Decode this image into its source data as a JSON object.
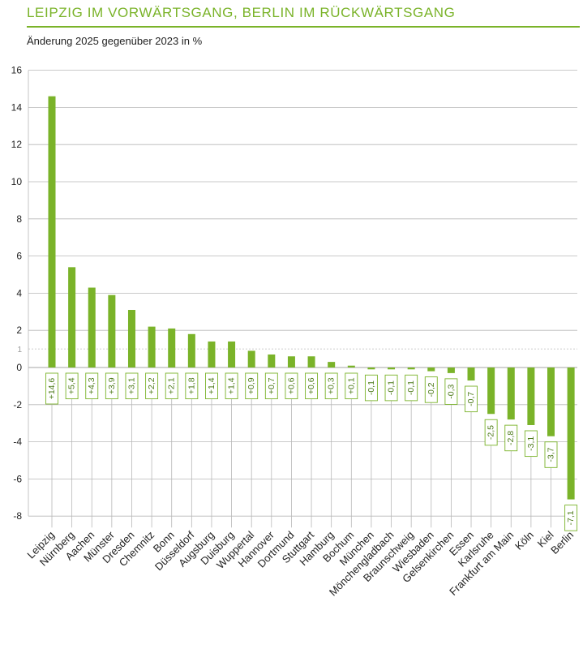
{
  "header": {
    "title": "Leipzig im Vorwärtsgang, Berlin im Rückwärtsgang",
    "subtitle": "Änderung 2025 gegenüber 2023 in %"
  },
  "colors": {
    "accent": "#7ab329",
    "label_text": "#4d7a1a",
    "grid": "#b8b8b8"
  },
  "chart_data": {
    "type": "bar",
    "title": "Leipzig im Vorwärtsgang, Berlin im Rückwärtsgang",
    "subtitle": "Änderung 2025 gegenüber 2023 in %",
    "xlabel": "",
    "ylabel": "",
    "ylim": [
      -8,
      16
    ],
    "yticks": [
      -8,
      -6,
      -4,
      -2,
      0,
      1,
      2,
      4,
      6,
      8,
      10,
      12,
      14,
      16
    ],
    "grid": true,
    "categories": [
      "Leipzig",
      "Nürnberg",
      "Aachen",
      "Münster",
      "Dresden",
      "Chemnitz",
      "Bonn",
      "Düsseldorf",
      "Augsburg",
      "Duisburg",
      "Wuppertal",
      "Hannover",
      "Dortmund",
      "Stuttgart",
      "Hamburg",
      "Bochum",
      "München",
      "Mönchengladbach",
      "Braunschweig",
      "Wiesbaden",
      "Gelsenkirchen",
      "Essen",
      "Karlsruhe",
      "Frankfurt am Main",
      "Köln",
      "Kiel",
      "Berlin"
    ],
    "values": [
      14.6,
      5.4,
      4.3,
      3.9,
      3.1,
      2.2,
      2.1,
      1.8,
      1.4,
      1.4,
      0.9,
      0.7,
      0.6,
      0.6,
      0.3,
      0.1,
      -0.1,
      -0.1,
      -0.1,
      -0.2,
      -0.3,
      -0.7,
      -2.5,
      -2.8,
      -3.1,
      -3.7,
      -7.1
    ],
    "value_labels": [
      "+14,6",
      "+5,4",
      "+4,3",
      "+3,9",
      "+3,1",
      "+2,2",
      "+2,1",
      "+1,8",
      "+1,4",
      "+1,4",
      "+0,9",
      "+0,7",
      "+0,6",
      "+0,6",
      "+0,3",
      "+0,1",
      "-0,1",
      "-0,1",
      "-0,1",
      "-0,2",
      "-0,3",
      "-0,7",
      "-2,5",
      "-2,8",
      "-3,1",
      "-3,7",
      "-7,1"
    ]
  }
}
